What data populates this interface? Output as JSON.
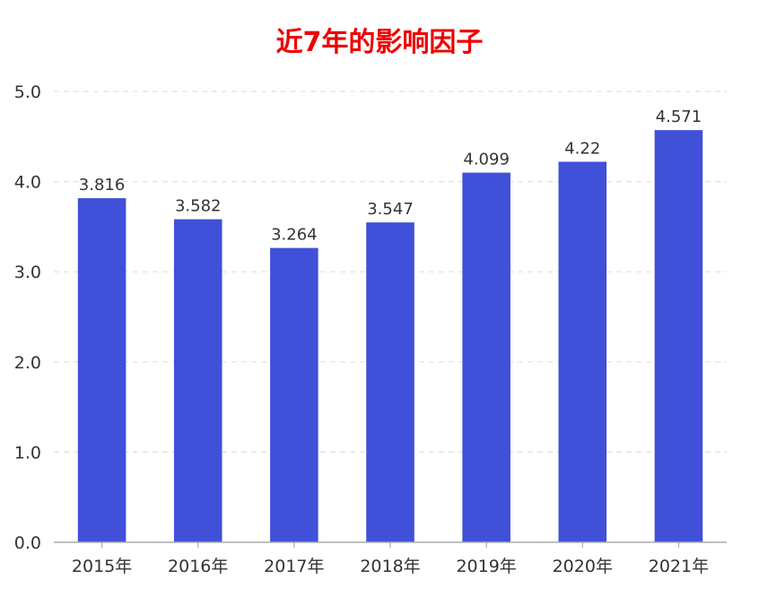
{
  "colors": {
    "title": "#ee0000",
    "bar": "#4050d8",
    "axis": "#aaaaaa",
    "grid": "#e0e0e0"
  },
  "chart_data": {
    "type": "bar",
    "title": "近7年的影响因子",
    "categories": [
      "2015年",
      "2016年",
      "2017年",
      "2018年",
      "2019年",
      "2020年",
      "2021年"
    ],
    "values": [
      3.816,
      3.582,
      3.264,
      3.547,
      4.099,
      4.22,
      4.571
    ],
    "value_labels": [
      "3.816",
      "3.582",
      "3.264",
      "3.547",
      "4.099",
      "4.22",
      "4.571"
    ],
    "y_ticks": [
      "0.0",
      "1.0",
      "2.0",
      "3.0",
      "4.0",
      "5.0"
    ],
    "ylim": [
      0,
      5
    ],
    "grid": true,
    "legend": "none"
  }
}
